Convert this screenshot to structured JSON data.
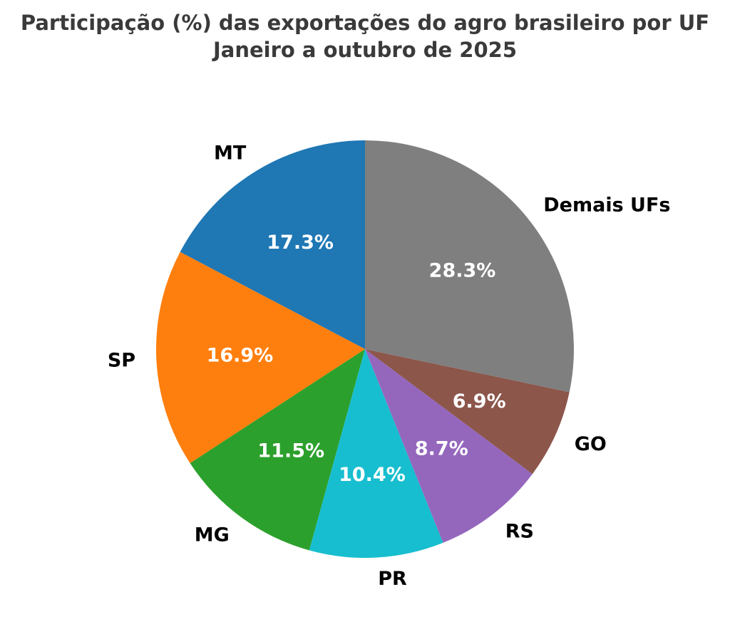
{
  "canvas": {
    "background_color": "#ffffff"
  },
  "title": {
    "line1": "Participação (%) das exportações do agro brasileiro por UF",
    "line2": "Janeiro a outubro de 2025",
    "color": "#3a3a3a"
  },
  "chart_data": {
    "type": "pie",
    "title": "Participação (%) das exportações do agro brasileiro por UF",
    "subtitle": "Janeiro a outubro de 2025",
    "unit": "%",
    "total": 100.0,
    "categories": [
      "MT",
      "SP",
      "MG",
      "PR",
      "RS",
      "GO",
      "Demais UFs"
    ],
    "values": [
      17.3,
      16.9,
      11.5,
      10.4,
      8.7,
      6.9,
      28.3
    ],
    "percent_labels": [
      "17.3%",
      "16.9%",
      "11.5%",
      "10.4%",
      "8.7%",
      "6.9%",
      "28.3%"
    ],
    "slice_colors": [
      "#1f77b4",
      "#ff7f0e",
      "#2ca02c",
      "#17becf",
      "#9467bd",
      "#8c564b",
      "#7f7f7f"
    ],
    "category_label_color": "#000000",
    "percent_label_color": "#ffffff",
    "start_angle_deg": 90,
    "direction": "counterclockwise",
    "label_distance_ratio": 1.1,
    "pct_distance_ratio": 0.6,
    "legend": "none",
    "grid": "off"
  }
}
